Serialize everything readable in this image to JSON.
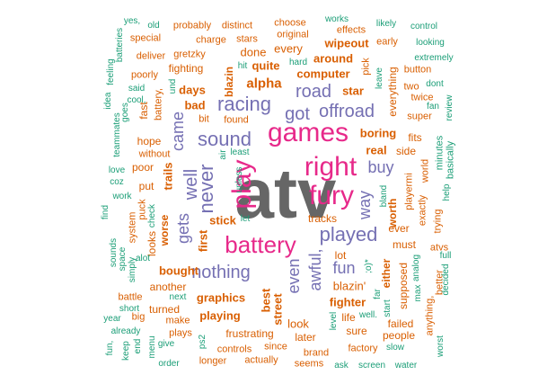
{
  "colors": {
    "gray": "#666666",
    "magenta": "#E7298A",
    "purple": "#7570B3",
    "orange": "#D95F02",
    "teal": "#1B9E77"
  },
  "words": [
    {
      "text": "atv",
      "color": "gray"
    },
    {
      "text": "games",
      "color": "magenta"
    },
    {
      "text": "right",
      "color": "magenta"
    },
    {
      "text": "fury",
      "color": "magenta"
    },
    {
      "text": "play",
      "color": "magenta"
    },
    {
      "text": "battery",
      "color": "magenta"
    },
    {
      "text": "played",
      "color": "purple"
    },
    {
      "text": "sound",
      "color": "purple"
    },
    {
      "text": "racing",
      "color": "purple"
    },
    {
      "text": "got",
      "color": "purple"
    },
    {
      "text": "offroad",
      "color": "purple"
    },
    {
      "text": "road",
      "color": "purple"
    },
    {
      "text": "never",
      "color": "purple"
    },
    {
      "text": "well",
      "color": "purple"
    },
    {
      "text": "came",
      "color": "purple"
    },
    {
      "text": "gets",
      "color": "purple"
    },
    {
      "text": "nothing",
      "color": "purple"
    },
    {
      "text": "fun",
      "color": "purple"
    },
    {
      "text": "even",
      "color": "purple"
    },
    {
      "text": "awful,",
      "color": "purple"
    },
    {
      "text": "buy",
      "color": "purple"
    },
    {
      "text": "way",
      "color": "purple"
    },
    {
      "text": "alpha",
      "color": "orange"
    },
    {
      "text": "computer",
      "color": "orange"
    },
    {
      "text": "quite",
      "color": "orange"
    },
    {
      "text": "star",
      "color": "orange"
    },
    {
      "text": "wipeout",
      "color": "orange"
    },
    {
      "text": "around",
      "color": "orange"
    },
    {
      "text": "every",
      "color": "orange"
    },
    {
      "text": "done",
      "color": "orange"
    },
    {
      "text": "days",
      "color": "orange"
    },
    {
      "text": "blazin",
      "color": "orange"
    },
    {
      "text": "bad",
      "color": "orange"
    },
    {
      "text": "boring",
      "color": "orange"
    },
    {
      "text": "real",
      "color": "orange"
    },
    {
      "text": "everything",
      "color": "orange"
    },
    {
      "text": "hope",
      "color": "orange"
    },
    {
      "text": "poor",
      "color": "orange"
    },
    {
      "text": "trails",
      "color": "orange"
    },
    {
      "text": "put",
      "color": "orange"
    },
    {
      "text": "stick",
      "color": "orange"
    },
    {
      "text": "first",
      "color": "orange"
    },
    {
      "text": "worse",
      "color": "orange"
    },
    {
      "text": "looks",
      "color": "orange"
    },
    {
      "text": "bought",
      "color": "orange"
    },
    {
      "text": "graphics",
      "color": "orange"
    },
    {
      "text": "another",
      "color": "orange"
    },
    {
      "text": "best",
      "color": "orange"
    },
    {
      "text": "street",
      "color": "orange"
    },
    {
      "text": "blazin'",
      "color": "orange"
    },
    {
      "text": "fighter",
      "color": "orange"
    },
    {
      "text": "playing",
      "color": "orange"
    },
    {
      "text": "frustrating",
      "color": "orange"
    },
    {
      "text": "look",
      "color": "orange"
    },
    {
      "text": "tracks",
      "color": "orange"
    },
    {
      "text": "worth",
      "color": "orange"
    },
    {
      "text": "either",
      "color": "orange"
    },
    {
      "text": "ever",
      "color": "orange"
    },
    {
      "text": "must",
      "color": "orange"
    },
    {
      "text": "supposed",
      "color": "orange"
    },
    {
      "text": "fits",
      "color": "orange"
    },
    {
      "text": "side",
      "color": "orange"
    },
    {
      "text": "fighting",
      "color": "orange"
    },
    {
      "text": "turned",
      "color": "orange"
    },
    {
      "text": "later",
      "color": "orange"
    },
    {
      "text": "life",
      "color": "orange"
    },
    {
      "text": "people",
      "color": "orange"
    },
    {
      "text": "failed",
      "color": "orange"
    },
    {
      "text": "sure",
      "color": "orange"
    },
    {
      "text": "lot",
      "color": "orange"
    },
    {
      "text": "effects",
      "color": "orange"
    },
    {
      "text": "choose",
      "color": "orange"
    },
    {
      "text": "original",
      "color": "orange"
    },
    {
      "text": "charge",
      "color": "orange"
    },
    {
      "text": "probably",
      "color": "orange"
    },
    {
      "text": "distinct",
      "color": "orange"
    },
    {
      "text": "special",
      "color": "orange"
    },
    {
      "text": "deliver",
      "color": "orange"
    },
    {
      "text": "gretzky",
      "color": "orange"
    },
    {
      "text": "stars",
      "color": "orange"
    },
    {
      "text": "early",
      "color": "orange"
    },
    {
      "text": "two",
      "color": "orange"
    },
    {
      "text": "twice",
      "color": "orange"
    },
    {
      "text": "super",
      "color": "orange"
    },
    {
      "text": "button",
      "color": "orange"
    },
    {
      "text": "fast",
      "color": "orange"
    },
    {
      "text": "battery,",
      "color": "orange"
    },
    {
      "text": "poorly",
      "color": "orange"
    },
    {
      "text": "pick",
      "color": "orange"
    },
    {
      "text": "without",
      "color": "orange"
    },
    {
      "text": "make",
      "color": "orange"
    },
    {
      "text": "plays",
      "color": "orange"
    },
    {
      "text": "longer",
      "color": "orange"
    },
    {
      "text": "actually",
      "color": "orange"
    },
    {
      "text": "controls",
      "color": "orange"
    },
    {
      "text": "since",
      "color": "orange"
    },
    {
      "text": "brand",
      "color": "orange"
    },
    {
      "text": "seems",
      "color": "orange"
    },
    {
      "text": "factory",
      "color": "orange"
    },
    {
      "text": "exactly",
      "color": "orange"
    },
    {
      "text": "minutes",
      "color": "teal"
    },
    {
      "text": "basically",
      "color": "teal"
    },
    {
      "text": "world",
      "color": "orange"
    },
    {
      "text": "playermi",
      "color": "orange"
    },
    {
      "text": "atvs",
      "color": "orange"
    },
    {
      "text": "trying",
      "color": "orange"
    },
    {
      "text": "better",
      "color": "orange"
    },
    {
      "text": "anything,",
      "color": "orange"
    },
    {
      "text": "big",
      "color": "orange"
    },
    {
      "text": "battle",
      "color": "orange"
    },
    {
      "text": "puck",
      "color": "orange"
    },
    {
      "text": "system",
      "color": "orange"
    },
    {
      "text": "found",
      "color": "orange"
    },
    {
      "text": "bit",
      "color": "orange"
    },
    {
      "text": "works",
      "color": "teal"
    },
    {
      "text": "likely",
      "color": "teal"
    },
    {
      "text": "control",
      "color": "teal"
    },
    {
      "text": "looking",
      "color": "teal"
    },
    {
      "text": "extremely",
      "color": "teal"
    },
    {
      "text": "dont",
      "color": "teal"
    },
    {
      "text": "fan",
      "color": "teal"
    },
    {
      "text": "review",
      "color": "teal"
    },
    {
      "text": "help",
      "color": "teal"
    },
    {
      "text": "full",
      "color": "teal"
    },
    {
      "text": "decided",
      "color": "teal"
    },
    {
      "text": "worst",
      "color": "teal"
    },
    {
      "text": "water",
      "color": "teal"
    },
    {
      "text": "screen",
      "color": "teal"
    },
    {
      "text": "ask",
      "color": "teal"
    },
    {
      "text": "slow",
      "color": "teal"
    },
    {
      "text": "well.",
      "color": "teal"
    },
    {
      "text": "level",
      "color": "teal"
    },
    {
      "text": "start",
      "color": "teal"
    },
    {
      "text": "far",
      "color": "teal"
    },
    {
      "text": "bland",
      "color": "teal"
    },
    {
      "text": "analog",
      "color": "teal"
    },
    {
      "text": "max",
      "color": "teal"
    },
    {
      "text": "leave",
      "color": "teal"
    },
    {
      "text": "hard",
      "color": "teal"
    },
    {
      "text": "hit",
      "color": "teal"
    },
    {
      "text": "air",
      "color": "teal"
    },
    {
      "text": "least",
      "color": "teal"
    },
    {
      "text": "let",
      "color": "teal"
    },
    {
      "text": "unless",
      "color": "teal"
    },
    {
      "text": "yes,",
      "color": "teal"
    },
    {
      "text": "old",
      "color": "teal"
    },
    {
      "text": "batteries",
      "color": "teal"
    },
    {
      "text": "feeling",
      "color": "teal"
    },
    {
      "text": "idea",
      "color": "teal"
    },
    {
      "text": "said",
      "color": "teal"
    },
    {
      "text": "cool,",
      "color": "teal"
    },
    {
      "text": "goes",
      "color": "teal"
    },
    {
      "text": "teammates",
      "color": "teal"
    },
    {
      "text": "und",
      "color": "teal"
    },
    {
      "text": "love",
      "color": "teal"
    },
    {
      "text": "coz",
      "color": "teal"
    },
    {
      "text": "work",
      "color": "teal"
    },
    {
      "text": "find",
      "color": "teal"
    },
    {
      "text": "check",
      "color": "teal"
    },
    {
      "text": "alot",
      "color": "teal"
    },
    {
      "text": "sounds",
      "color": "teal"
    },
    {
      "text": "space",
      "color": "teal"
    },
    {
      "text": "simply",
      "color": "teal"
    },
    {
      "text": "next",
      "color": "teal"
    },
    {
      "text": "short",
      "color": "teal"
    },
    {
      "text": "year",
      "color": "teal"
    },
    {
      "text": "already",
      "color": "teal"
    },
    {
      "text": "fun,",
      "color": "teal"
    },
    {
      "text": "keep",
      "color": "teal"
    },
    {
      "text": "end",
      "color": "teal"
    },
    {
      "text": "menu",
      "color": "teal"
    },
    {
      "text": "give",
      "color": "teal"
    },
    {
      "text": "order",
      "color": "teal"
    },
    {
      "text": "ps2",
      "color": "teal"
    },
    {
      "text": ";o)*",
      "color": "teal"
    }
  ]
}
